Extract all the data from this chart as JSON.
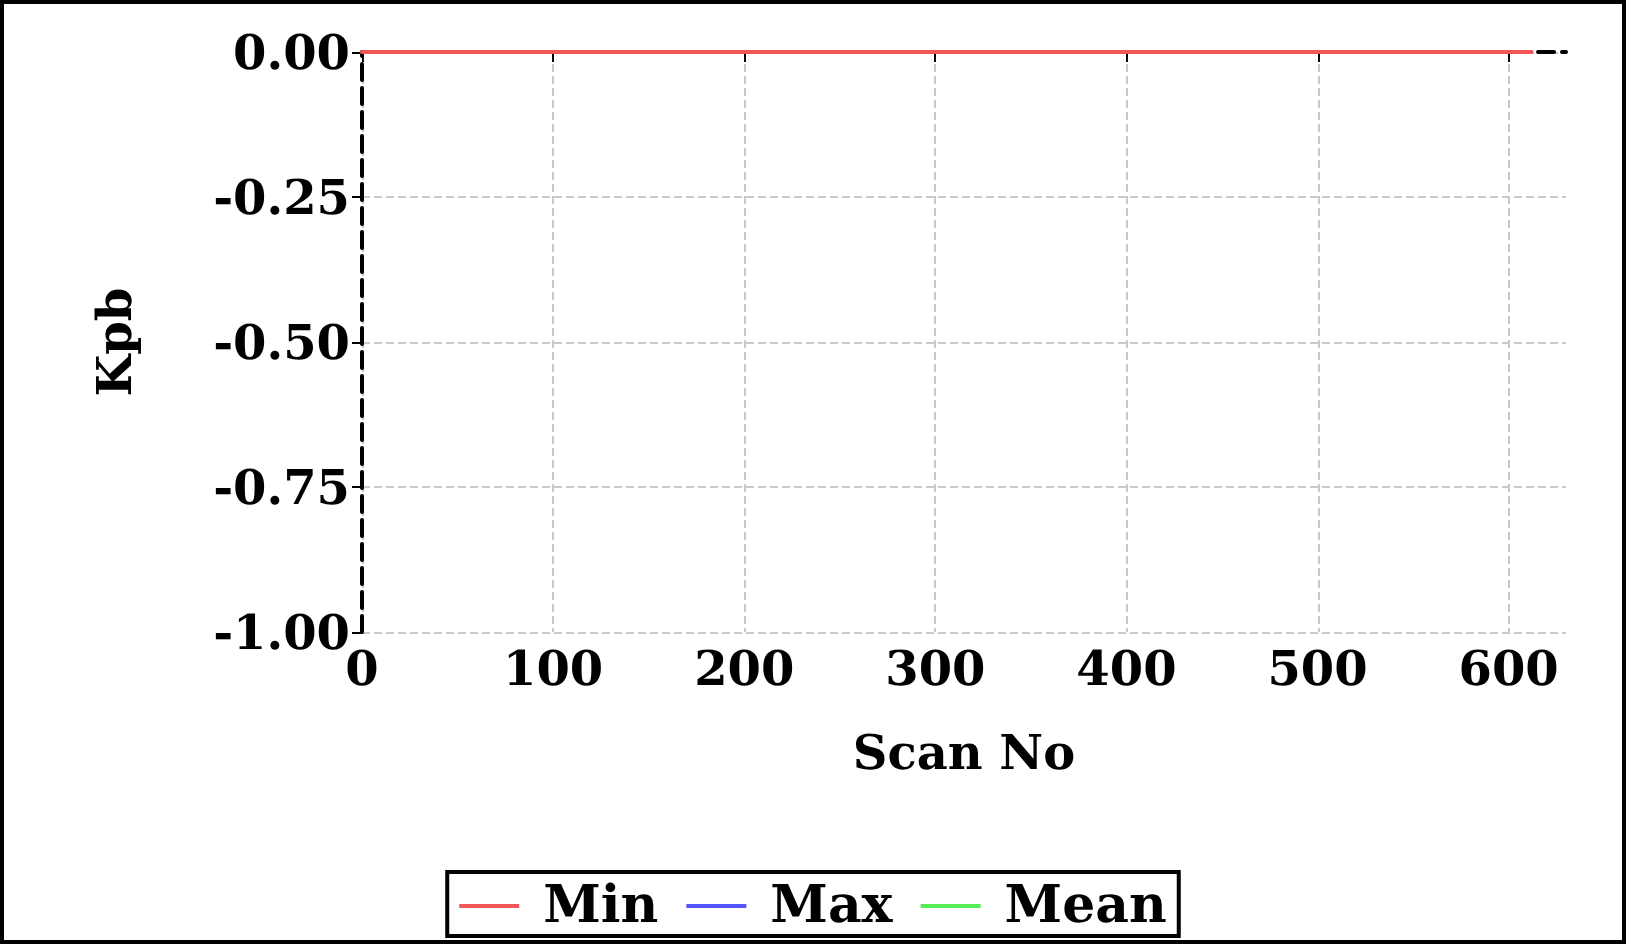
{
  "chart_data": {
    "type": "line",
    "xlabel": "Scan No",
    "ylabel": "Kpb",
    "x": [
      0,
      612
    ],
    "series": [
      {
        "name": "Min",
        "color": "#f25555",
        "values": [
          0,
          0
        ]
      },
      {
        "name": "Max",
        "color": "#5555ff",
        "values": [
          null,
          null
        ]
      },
      {
        "name": "Mean",
        "color": "#55ee55",
        "values": [
          null,
          null
        ]
      }
    ],
    "xlim": [
      0,
      630
    ],
    "xticks": [
      0,
      100,
      200,
      300,
      400,
      500,
      600
    ],
    "ylim": [
      -1,
      0
    ],
    "yticks": [
      {
        "value": -1,
        "label": "-1.00"
      },
      {
        "value": -0.75,
        "label": "-0.75"
      },
      {
        "value": -0.5,
        "label": "-0.50"
      },
      {
        "value": -0.25,
        "label": "-0.25"
      },
      {
        "value": 0,
        "label": "0.00"
      }
    ],
    "grid": true,
    "legend": "bottom",
    "marker": "none",
    "line_style": "solid"
  }
}
